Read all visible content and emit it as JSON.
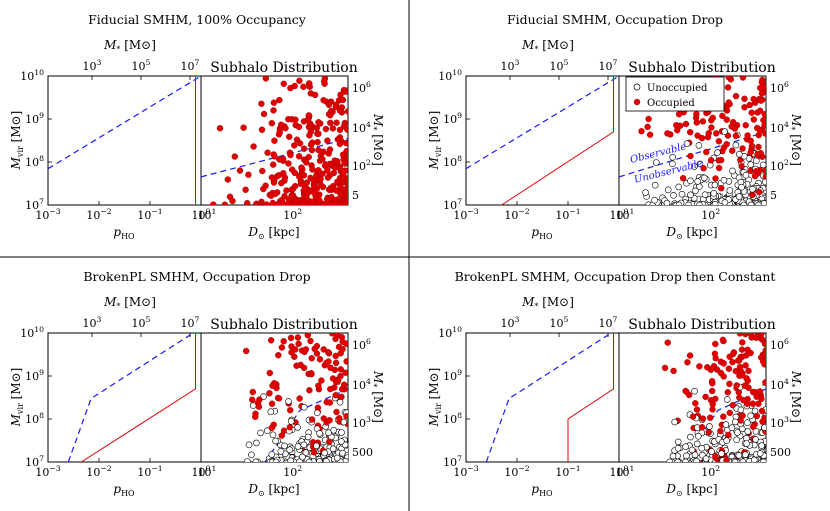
{
  "colors": {
    "obs_line": "#1a1aff",
    "drop_line": "#e00000",
    "occupied_fill": "#e00000",
    "unoccupied_edge": "#000000",
    "divider": "#000000"
  },
  "axis_text": {
    "left_xlabel": "p",
    "left_xlabel_sub": "HO",
    "left_ylabel": "M",
    "left_ylabel_sub": "vir",
    "left_ylabel_unit": "[M",
    "top_xlabel": "M",
    "top_xlabel_sub": "*",
    "top_xlabel_unit": "[M",
    "right_xlabel": "D",
    "right_xlabel_unit": "[kpc]",
    "right_ylabel": "M",
    "right_ylabel_sub": "*",
    "right_ylabel_unit": "[M",
    "right_title": "Subhalo Distribution"
  },
  "left_xticks": [
    "10",
    "10",
    "10",
    "10"
  ],
  "left_xtick_exps": [
    "−3",
    "−2",
    "−1",
    "0"
  ],
  "left_yticks": [
    "10",
    "10",
    "10",
    "10"
  ],
  "left_ytick_exps": [
    "7",
    "8",
    "9",
    "10"
  ],
  "top_ticks": [
    "10",
    "10",
    "10"
  ],
  "top_tick_exps": [
    "3",
    "5",
    "7"
  ],
  "right_xticks": [
    "10",
    "10"
  ],
  "right_xtick_exps": [
    "1",
    "2"
  ],
  "legend": {
    "unoccupied": "Unoccupied",
    "occupied": "Occupied"
  },
  "observable_labels": [
    "Observable",
    "Unobservable"
  ],
  "panels": [
    {
      "title": "Fiducial SMHM, 100% Occupancy",
      "right_ticks": [
        {
          "base": "10",
          "exp": "6"
        },
        {
          "base": "10",
          "exp": "4"
        },
        {
          "base": "10",
          "exp": "2"
        },
        {
          "base": "5",
          "exp": ""
        }
      ],
      "occupation": "full",
      "show_unoccupied": false,
      "show_legend": false,
      "show_obs_text": false
    },
    {
      "title": "Fiducial SMHM, Occupation Drop",
      "right_ticks": [
        {
          "base": "10",
          "exp": "6"
        },
        {
          "base": "10",
          "exp": "4"
        },
        {
          "base": "10",
          "exp": "2"
        },
        {
          "base": "5",
          "exp": ""
        }
      ],
      "occupation": "drop",
      "show_unoccupied": true,
      "show_legend": true,
      "show_obs_text": true
    },
    {
      "title": "BrokenPL SMHM, Occupation Drop",
      "right_ticks": [
        {
          "base": "10",
          "exp": "6"
        },
        {
          "base": "10",
          "exp": "4"
        },
        {
          "base": "10",
          "exp": "3"
        },
        {
          "base": "500",
          "exp": ""
        }
      ],
      "occupation": "drop",
      "show_unoccupied": true,
      "show_legend": false,
      "show_obs_text": false
    },
    {
      "title": "BrokenPL SMHM, Occupation Drop then Constant",
      "right_ticks": [
        {
          "base": "10",
          "exp": "6"
        },
        {
          "base": "10",
          "exp": "4"
        },
        {
          "base": "10",
          "exp": "3"
        },
        {
          "base": "500",
          "exp": ""
        }
      ],
      "occupation": "drop_constant",
      "show_unoccupied": true,
      "show_legend": false,
      "show_obs_text": false
    }
  ],
  "chart_data": [
    {
      "type": "line",
      "panel": "Fiducial SMHM, 100% Occupancy",
      "xlabel": "p_HO",
      "ylabel": "M_vir [M_sun]",
      "xscale": "log",
      "yscale": "log",
      "xlim": [
        0.001,
        1
      ],
      "ylim": [
        10000000.0,
        10000000000.0
      ],
      "top_axis": {
        "label": "M_* [M_sun]",
        "ticks": [
          1000.0,
          100000.0,
          10000000.0
        ]
      },
      "series": [
        {
          "style": "dashed-blue",
          "x": [
            0.001,
            1
          ],
          "y": [
            70000000.0,
            10000000000.0
          ]
        },
        {
          "style": "solid-red",
          "x": [
            0.78,
            0.78
          ],
          "y": [
            10000000.0,
            10000000000.0
          ]
        }
      ]
    },
    {
      "type": "scatter",
      "panel": "Fiducial SMHM, 100% Occupancy",
      "title": "Subhalo Distribution",
      "xlabel": "D_sun [kpc]",
      "ylabel_right": "M_* [M_sun]",
      "xscale": "log",
      "yscale": "log",
      "xlim": [
        10,
        400
      ],
      "ylim": [
        10000000.0,
        10000000000.0
      ],
      "right_axis_ticks": [
        "10^6",
        "10^4",
        "10^2",
        "5"
      ],
      "observability_line": {
        "x": [
          10,
          400
        ],
        "y": [
          45000000.0,
          350000000.0
        ]
      },
      "occupied_points": "all subhalos shown (red); density rising toward large D_sun and low M_vir"
    },
    {
      "type": "line",
      "panel": "Fiducial SMHM, Occupation Drop",
      "xlabel": "p_HO",
      "ylabel": "M_vir [M_sun]",
      "xscale": "log",
      "yscale": "log",
      "xlim": [
        0.001,
        1
      ],
      "ylim": [
        10000000.0,
        10000000000.0
      ],
      "series": [
        {
          "style": "dashed-blue",
          "x": [
            0.001,
            1
          ],
          "y": [
            70000000.0,
            10000000000.0
          ]
        },
        {
          "style": "solid-red",
          "x": [
            0.005,
            0.78,
            0.78
          ],
          "y": [
            10000000.0,
            500000000.0,
            10000000000.0
          ]
        }
      ]
    },
    {
      "type": "scatter",
      "panel": "Fiducial SMHM, Occupation Drop",
      "title": "Subhalo Distribution",
      "xlabel": "D_sun [kpc]",
      "xlim": [
        10,
        400
      ],
      "ylim": [
        10000000.0,
        10000000000.0
      ],
      "legend": [
        "Unoccupied",
        "Occupied"
      ],
      "annotations": [
        "Observable",
        "Unobservable"
      ],
      "observability_line": {
        "x": [
          10,
          400
        ],
        "y": [
          45000000.0,
          500000000.0
        ]
      }
    },
    {
      "type": "line",
      "panel": "BrokenPL SMHM, Occupation Drop",
      "xlim": [
        0.001,
        1
      ],
      "ylim": [
        10000000.0,
        10000000000.0
      ],
      "series": [
        {
          "style": "dashed-blue",
          "x": [
            0.0025,
            0.007,
            0.7
          ],
          "y": [
            10000000.0,
            300000000.0,
            10000000000.0
          ]
        },
        {
          "style": "solid-red",
          "x": [
            0.0045,
            0.78,
            0.78
          ],
          "y": [
            10000000.0,
            500000000.0,
            10000000000.0
          ]
        }
      ]
    },
    {
      "type": "scatter",
      "panel": "BrokenPL SMHM, Occupation Drop",
      "title": "Subhalo Distribution",
      "xlabel": "D_sun [kpc]",
      "xlim": [
        10,
        400
      ],
      "ylim": [
        10000000.0,
        10000000000.0
      ],
      "right_axis_ticks": [
        "10^6",
        "10^4",
        "10^3",
        "500"
      ]
    },
    {
      "type": "line",
      "panel": "BrokenPL SMHM, Occupation Drop then Constant",
      "xlim": [
        0.001,
        1
      ],
      "ylim": [
        10000000.0,
        10000000000.0
      ],
      "series": [
        {
          "style": "dashed-blue",
          "x": [
            0.0025,
            0.007,
            0.7
          ],
          "y": [
            10000000.0,
            300000000.0,
            10000000000.0
          ]
        },
        {
          "style": "solid-red",
          "x": [
            0.1,
            0.1,
            0.78,
            0.78
          ],
          "y": [
            10000000.0,
            100000000.0,
            500000000.0,
            10000000000.0
          ]
        }
      ]
    },
    {
      "type": "scatter",
      "panel": "BrokenPL SMHM, Occupation Drop then Constant",
      "title": "Subhalo Distribution",
      "xlabel": "D_sun [kpc]",
      "xlim": [
        10,
        400
      ],
      "ylim": [
        10000000.0,
        10000000000.0
      ],
      "right_axis_ticks": [
        "10^6",
        "10^4",
        "10^3",
        "500"
      ]
    }
  ]
}
